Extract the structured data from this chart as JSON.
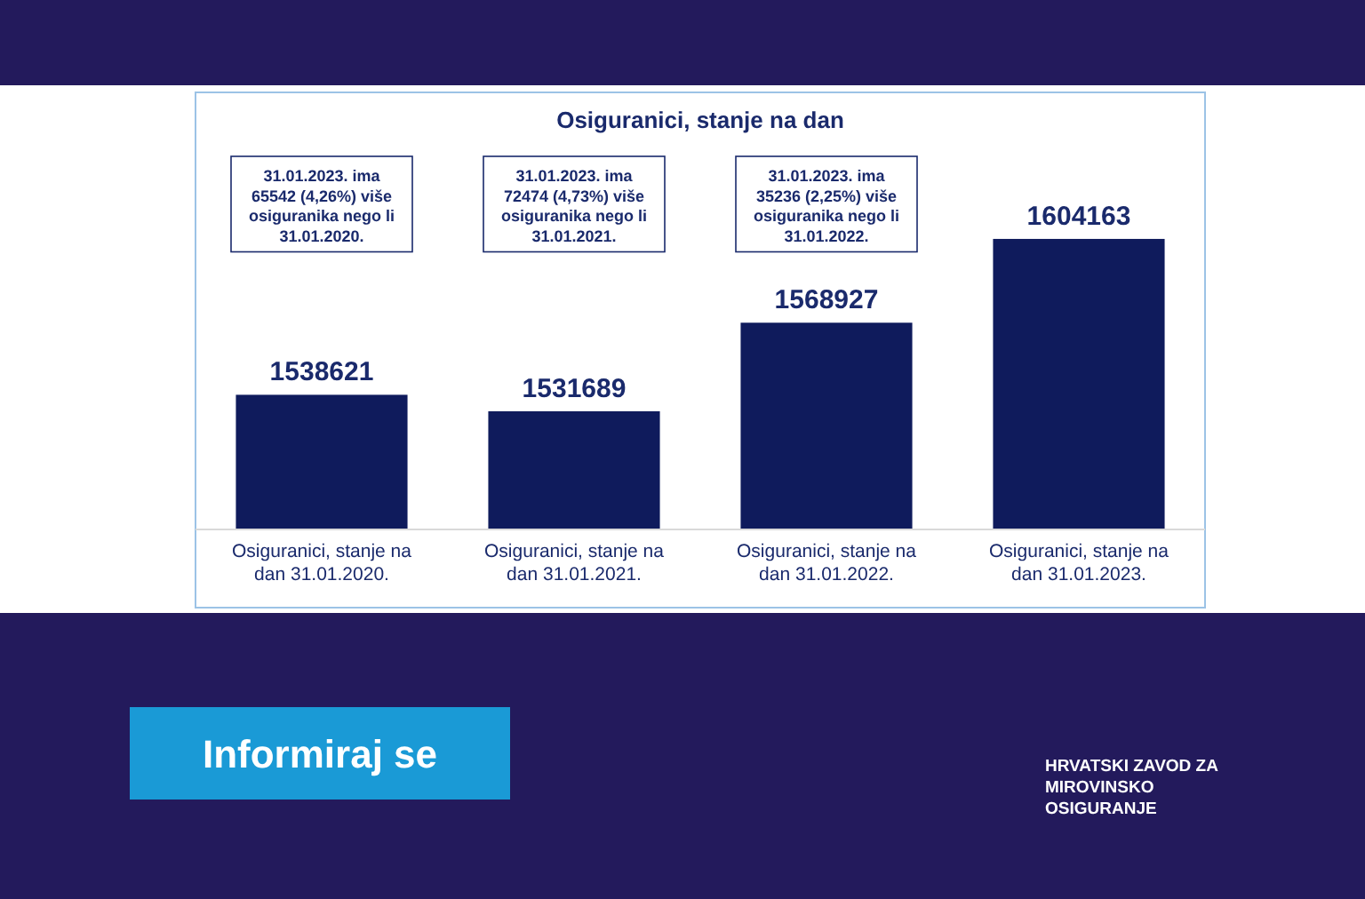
{
  "chart_data": {
    "type": "bar",
    "title": "Osiguranici, stanje na dan",
    "categories": [
      "Osiguranici, stanje na dan 31.01.2020.",
      "Osiguranici, stanje na dan 31.01.2021.",
      "Osiguranici, stanje na dan 31.01.2022.",
      "Osiguranici, stanje na dan 31.01.2023."
    ],
    "values": [
      1538621,
      1531689,
      1568927,
      1604163
    ],
    "color": "#0f1b5c",
    "data_labels": true,
    "ylim": [
      1482000,
      1640000
    ],
    "tick_labels": "x",
    "grid": false,
    "annotations": [
      "31.01.2023. ima 65542 (4,26%) više osiguranika nego li 31.01.2020.",
      "31.01.2023. ima 72474 (4,73%) više osiguranika nego li 31.01.2021.",
      "31.01.2023. ima 35236 (2,25%) više osiguranika nego li 31.01.2022.",
      "Informiraj se",
      "HRVATSKI ZAVOD ZA MIROVINSKO OSIGURANJE"
    ]
  }
}
